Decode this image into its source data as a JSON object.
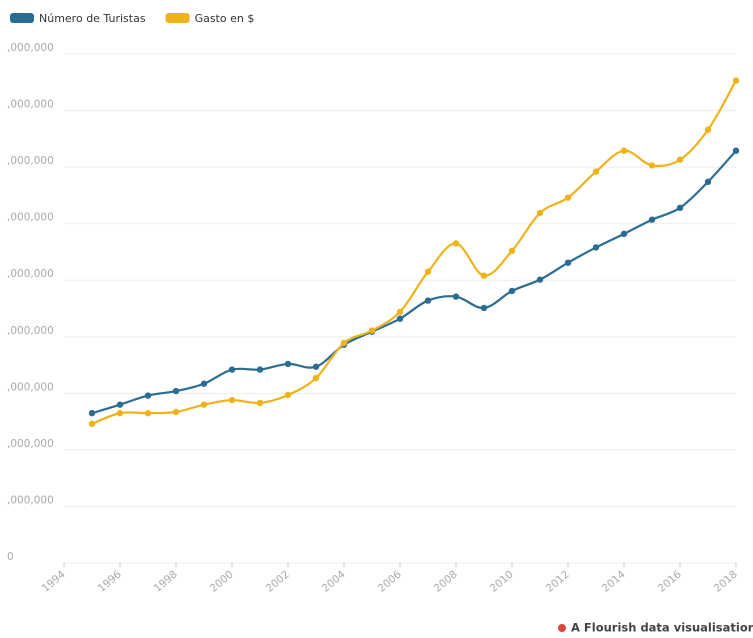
{
  "chart_data": {
    "type": "line",
    "x": [
      1995,
      1996,
      1997,
      1998,
      1999,
      2000,
      2001,
      2002,
      2003,
      2004,
      2005,
      2006,
      2007,
      2008,
      2009,
      2010,
      2011,
      2012,
      2013,
      2014,
      2015,
      2016,
      2017,
      2018
    ],
    "series": [
      {
        "name": "Número de Turistas",
        "color": "#2b6d92",
        "values": [
          2650000,
          2800000,
          2960000,
          3040000,
          3170000,
          3420000,
          3420000,
          3520000,
          3470000,
          3860000,
          4090000,
          4320000,
          4640000,
          4710000,
          4510000,
          4810000,
          5010000,
          5310000,
          5580000,
          5820000,
          6070000,
          6280000,
          6740000,
          7290000
        ]
      },
      {
        "name": "Gasto en $",
        "color": "#f0b21a",
        "values": [
          2460000,
          2650000,
          2650000,
          2670000,
          2800000,
          2880000,
          2830000,
          2970000,
          3270000,
          3890000,
          4110000,
          4440000,
          5150000,
          5650000,
          5080000,
          5520000,
          6190000,
          6460000,
          6920000,
          7290000,
          7030000,
          7130000,
          7660000,
          8530000
        ]
      }
    ],
    "xlim": [
      1994,
      2018
    ],
    "xticks": [
      1994,
      1996,
      1998,
      2000,
      2002,
      2004,
      2006,
      2008,
      2010,
      2012,
      2014,
      2016,
      2018
    ],
    "ylim": [
      0,
      9000000
    ],
    "yticks": [
      0,
      {
        "value": 1000000,
        "label": ",000,000"
      },
      {
        "value": 2000000,
        "label": ",000,000"
      },
      {
        "value": 3000000,
        "label": ",000,000"
      },
      {
        "value": 4000000,
        "label": ",000,000"
      },
      {
        "value": 5000000,
        "label": ",000,000"
      },
      {
        "value": 6000000,
        "label": ",000,000"
      },
      {
        "value": 7000000,
        "label": ",000,000"
      },
      {
        "value": 8000000,
        "label": ",000,000"
      },
      {
        "value": 9000000,
        "label": ",000,000"
      }
    ],
    "grid": true,
    "footer": "A Flourish data visualisation"
  }
}
